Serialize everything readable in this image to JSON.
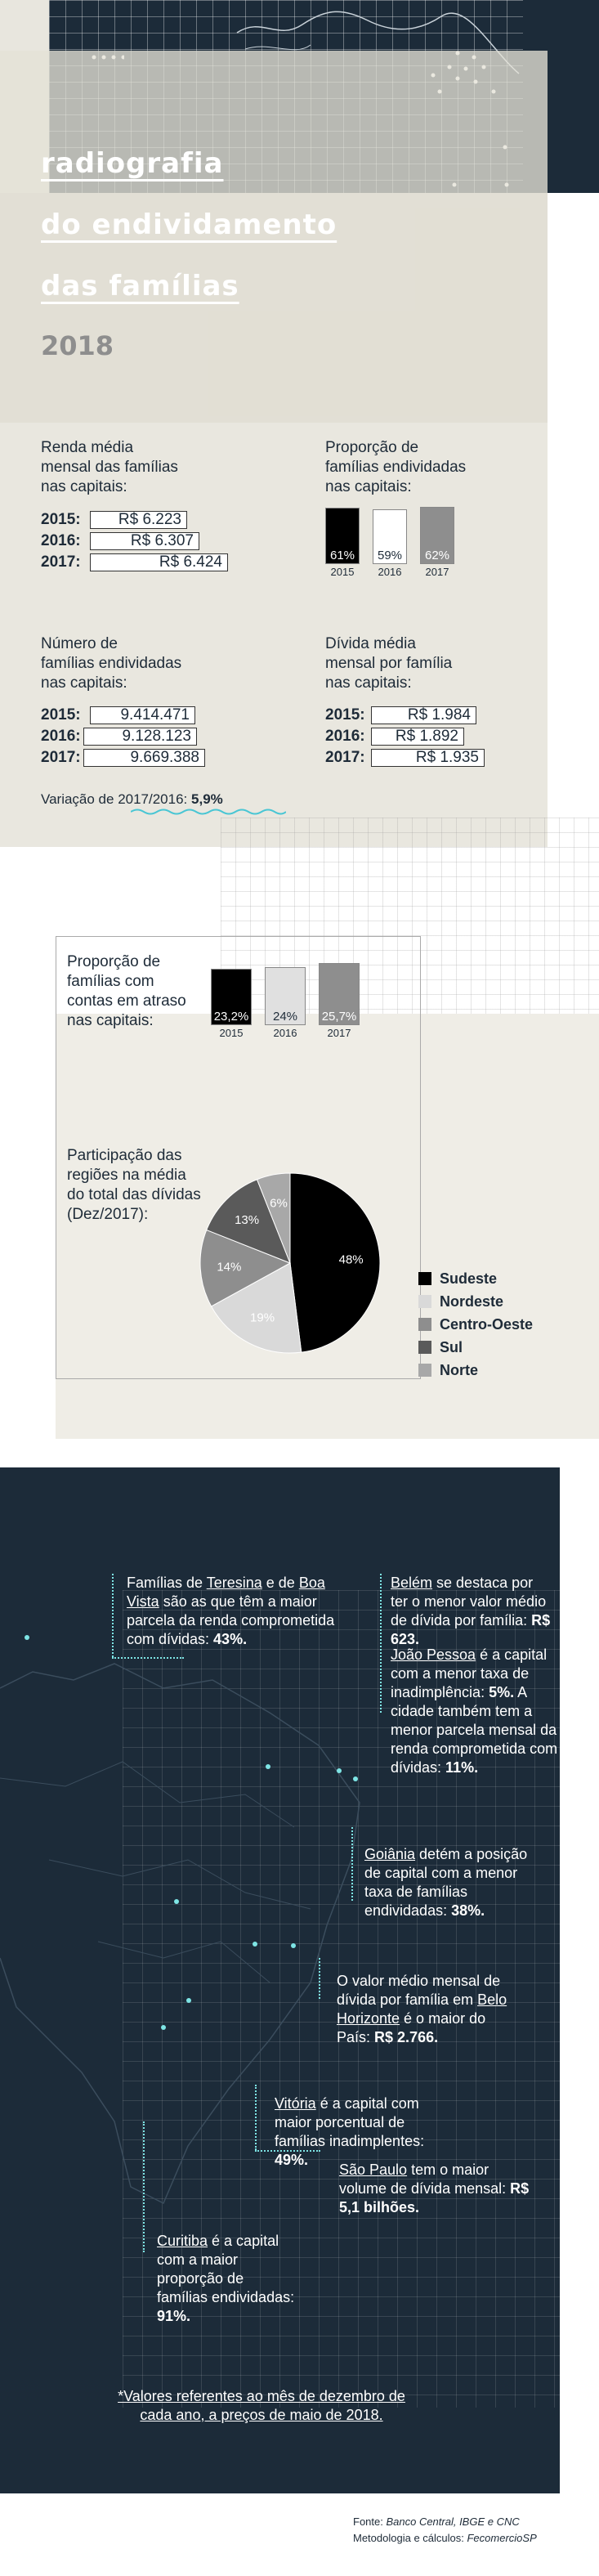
{
  "header": {
    "title_lines": [
      "radiografia",
      "do endividamento",
      "das famílias"
    ],
    "year": "2018"
  },
  "renda": {
    "label": "Renda média\nmensal das famílias\nnas capitais:",
    "rows": [
      {
        "year": "2015:",
        "value": "R$ 6.223"
      },
      {
        "year": "2016:",
        "value": "R$ 6.307"
      },
      {
        "year": "2017:",
        "value": "R$ 6.424"
      }
    ]
  },
  "proporcao_endividadas": {
    "label": "Proporção de\nfamílias endividadas\nnas capitais:",
    "chart_data": {
      "type": "bar",
      "categories": [
        "2015",
        "2016",
        "2017"
      ],
      "values": [
        61,
        59,
        62
      ],
      "labels": [
        "61%",
        "59%",
        "62%"
      ],
      "colors": [
        "#000000",
        "#ffffff",
        "#8e8e8e"
      ]
    }
  },
  "numero": {
    "label": "Número de\nfamílias endividadas\nnas capitais:",
    "rows": [
      {
        "year": "2015:",
        "value": "9.414.471"
      },
      {
        "year": "2016:",
        "value": "9.128.123"
      },
      {
        "year": "2017:",
        "value": "9.669.388"
      }
    ]
  },
  "divida": {
    "label": "Dívida média\nmensal por família\nnas capitais:",
    "rows": [
      {
        "year": "2015:",
        "value": "R$ 1.984"
      },
      {
        "year": "2016:",
        "value": "R$ 1.892"
      },
      {
        "year": "2017:",
        "value": "R$ 1.935"
      }
    ]
  },
  "variacao": {
    "label": "Variação de 2017/2016:",
    "value": "5,9%"
  },
  "atraso": {
    "label": "Proporção de\nfamílias com\ncontas em atraso\nnas capitais:",
    "chart_data": {
      "type": "bar",
      "categories": [
        "2015",
        "2016",
        "2017"
      ],
      "values": [
        23.2,
        24,
        25.7
      ],
      "labels": [
        "23,2%",
        "24%",
        "25,7%"
      ],
      "colors": [
        "#000000",
        "#e0e0e0",
        "#8e8e8e"
      ]
    }
  },
  "regioes": {
    "label": "Participação das\nregiões na média\ndo total das dívidas\n(Dez/2017):",
    "chart_data": {
      "type": "pie",
      "categories": [
        "Sudeste",
        "Nordeste",
        "Centro-Oeste",
        "Sul",
        "Norte"
      ],
      "values": [
        48,
        19,
        14,
        13,
        6
      ],
      "labels": [
        "48%",
        "19%",
        "14%",
        "13%",
        "6%"
      ],
      "colors": [
        "#000000",
        "#d9d9d9",
        "#8e8e8e",
        "#5a5a5a",
        "#a8a8a8"
      ],
      "legend": "right"
    }
  },
  "mapa": {
    "teresina": {
      "pre": "Famílias de ",
      "city1": "Teresina",
      "mid": " e de ",
      "city2": "Boa Vista",
      "post": " são as que têm a maior parcela da renda comprometida com dívidas: ",
      "value": "43%."
    },
    "belem": {
      "city": "Belém",
      "text": " se destaca por ter o menor valor médio de dívida por família: ",
      "value": "R$ 623."
    },
    "joao_pessoa": {
      "city": "João Pessoa",
      "text": " é a capital com a menor taxa de inadimplência: ",
      "value1": "5%.",
      "text2": " A cidade também tem a menor parcela mensal da renda comprometida com dívidas: ",
      "value2": "11%."
    },
    "goiania": {
      "city": "Goiânia",
      "text": " detém a posição de capital com a menor taxa de famílias endividadas: ",
      "value": "38%."
    },
    "bh": {
      "pre": "O valor médio mensal de dívida por família em ",
      "city": "Belo Horizonte",
      "text": " é o maior do País: ",
      "value": "R$ 2.766."
    },
    "vitoria": {
      "city": "Vitória",
      "text": " é a capital com maior porcentual de famílias inadimplentes: ",
      "value": "49%."
    },
    "sao_paulo": {
      "city": "São Paulo",
      "text": " tem o maior volume de dívida mensal: ",
      "value": "R$ 5,1 bilhões."
    },
    "curitiba": {
      "city": "Curitiba",
      "text": " é a capital com a maior proporção de famílias endividadas: ",
      "value": "91%."
    },
    "nota": "*Valores referentes ao mês de dezembro de cada ano, a preços de maio de 2018."
  },
  "footer": {
    "fonte_label": "Fonte: ",
    "fonte": "Banco Central, IBGE e CNC",
    "metodologia_label": "Metodologia e cálculos: ",
    "metodologia": "FecomercioSP"
  }
}
